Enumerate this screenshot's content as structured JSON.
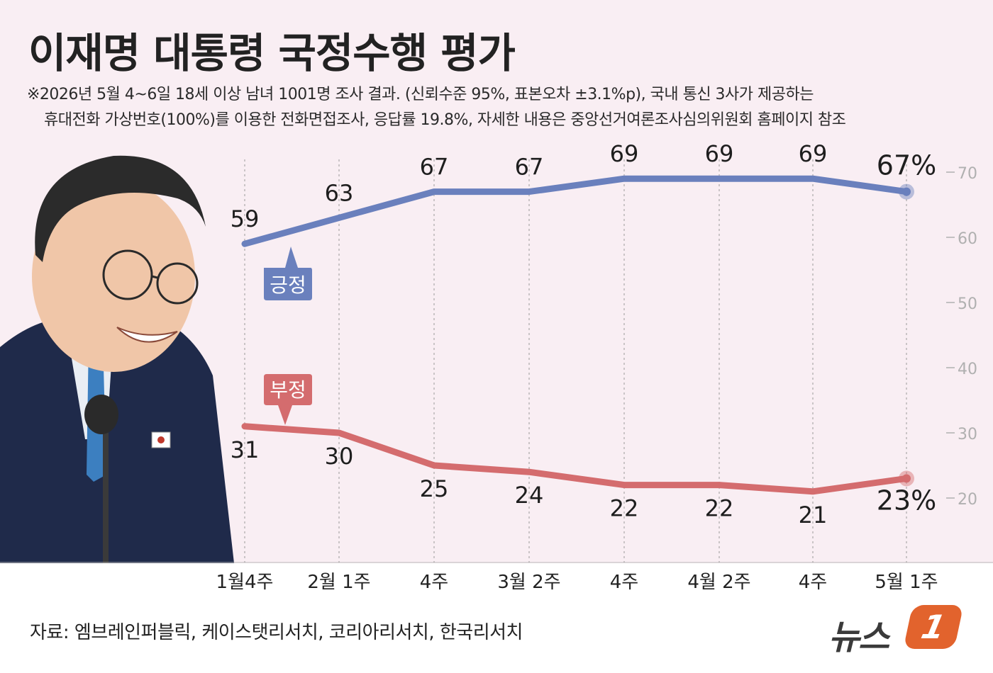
{
  "title": "이재명 대통령 국정수행 평가",
  "note_line1": "※2026년 5월 4~6일 18세 이상 남녀 1001명 조사 결과. (신뢰수준 95%, 표본오차 ±3.1%p), 국내 통신 3사가 제공하는",
  "note_line2": "휴대전화 가상번호(100%)를 이용한 전화면접조사, 응답률 19.8%, 자세한 내용은 중앙선거여론조사심의위원회 홈페이지 참조",
  "source": "자료: 엠브레인퍼블릭, 케이스탯리서치, 코리아리서치, 한국리서치",
  "logo": {
    "text": "뉴스",
    "mark": "1"
  },
  "colors": {
    "positive": "#6a80bd",
    "negative": "#d46c6e",
    "background": "#f9eef3",
    "logo": "#e2632d"
  },
  "chart_data": {
    "type": "line",
    "categories": [
      "1월4주",
      "2월 1주",
      "4주",
      "3월 2주",
      "4주",
      "4월 2주",
      "4주",
      "5월 1주"
    ],
    "series": [
      {
        "name": "긍정",
        "values": [
          59,
          63,
          67,
          67,
          69,
          69,
          69,
          67
        ],
        "labels": [
          "59",
          "63",
          "67",
          "67",
          "69",
          "69",
          "69",
          "67%"
        ]
      },
      {
        "name": "부정",
        "values": [
          31,
          30,
          25,
          24,
          22,
          22,
          21,
          23
        ],
        "labels": [
          "31",
          "30",
          "25",
          "24",
          "22",
          "22",
          "21",
          "23%"
        ]
      }
    ],
    "yticks": [
      70,
      60,
      50,
      40,
      30,
      20
    ],
    "ytick_labels": [
      "70",
      "60",
      "50",
      "40",
      "30",
      "20"
    ],
    "ylim": [
      12,
      72
    ],
    "grid": "vertical dashed"
  }
}
